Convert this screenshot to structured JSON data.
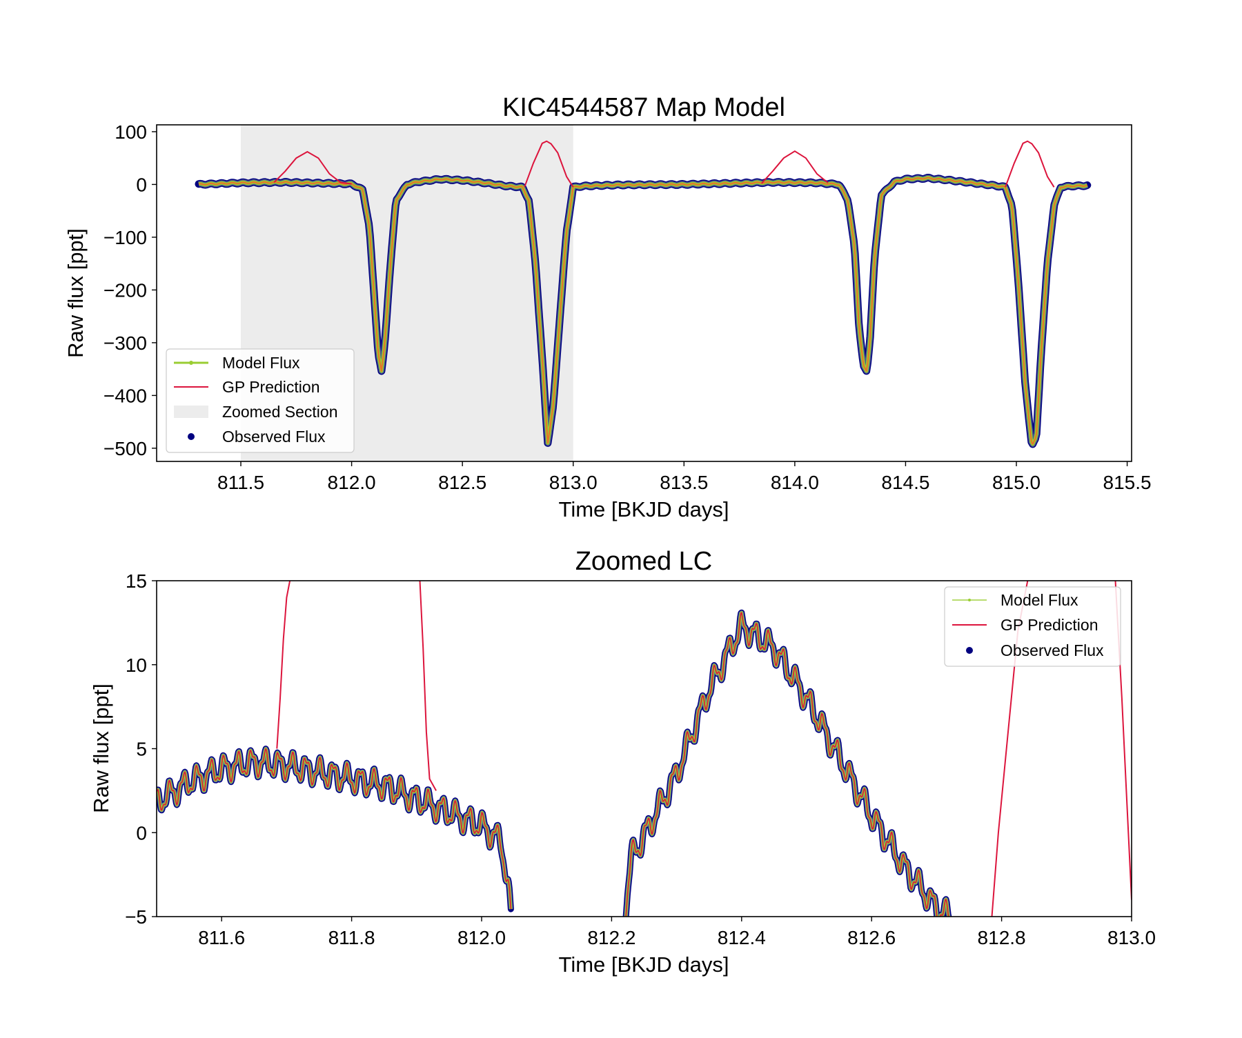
{
  "colors": {
    "model": "#9acd32",
    "gp": "#dc143c",
    "observed": "#000080",
    "zoom_span": "#ececec",
    "axes": "#000000"
  },
  "chart_data": [
    {
      "type": "line",
      "title": "KIC4544587 Map Model",
      "xlabel": "Time [BKJD days]",
      "ylabel": "Raw flux [ppt]",
      "xlim": [
        811.12,
        815.52
      ],
      "ylim": [
        -525,
        113
      ],
      "xticks": [
        "811.5",
        "812.0",
        "812.5",
        "813.0",
        "813.5",
        "814.0",
        "814.5",
        "815.0",
        "815.5"
      ],
      "xtick_values": [
        811.5,
        812.0,
        812.5,
        813.0,
        813.5,
        814.0,
        814.5,
        815.0,
        815.5
      ],
      "yticks": [
        "100",
        "0",
        "−100",
        "−200",
        "−300",
        "−400",
        "−500"
      ],
      "ytick_values": [
        100,
        0,
        -100,
        -200,
        -300,
        -400,
        -500
      ],
      "legend_position": "lower-left",
      "legend": [
        "Model Flux",
        "GP Prediction",
        "Zoomed Section",
        "Observed Flux"
      ],
      "zoomed_section": [
        811.5,
        813.0
      ],
      "flux_profile": {
        "x": [
          811.31,
          811.5,
          811.7,
          811.9,
          812.0,
          812.05,
          812.08,
          812.1,
          812.12,
          812.135,
          812.15,
          812.17,
          812.2,
          812.25,
          812.3,
          812.4,
          812.5,
          812.6,
          812.7,
          812.77,
          812.8,
          812.83,
          812.86,
          812.885,
          812.91,
          812.94,
          812.97,
          813.0,
          813.05,
          813.2,
          813.5,
          813.7,
          813.9,
          814.1,
          814.2,
          814.24,
          814.27,
          814.29,
          814.31,
          814.325,
          814.34,
          814.36,
          814.39,
          814.45,
          814.5,
          814.6,
          814.7,
          814.8,
          814.9,
          814.95,
          814.98,
          815.01,
          815.04,
          815.07,
          815.09,
          815.11,
          815.14,
          815.17,
          815.2,
          815.25,
          815.32
        ],
        "y": [
          0,
          3,
          4,
          2,
          1,
          -10,
          -80,
          -200,
          -320,
          -355,
          -300,
          -180,
          -30,
          0,
          5,
          10,
          8,
          3,
          -3,
          -5,
          -30,
          -150,
          -330,
          -490,
          -420,
          -250,
          -90,
          -5,
          -3,
          -1,
          0,
          2,
          4,
          3,
          0,
          -30,
          -120,
          -270,
          -345,
          -355,
          -290,
          -140,
          -20,
          5,
          10,
          12,
          8,
          3,
          -2,
          -5,
          -40,
          -190,
          -380,
          -495,
          -480,
          -330,
          -150,
          -40,
          -5,
          -3,
          -2
        ]
      },
      "gp_bumps": {
        "x": [
          811.65,
          811.7,
          811.75,
          811.8,
          811.85,
          811.9,
          811.95,
          812.0,
          812.78,
          812.82,
          812.86,
          812.88,
          812.9,
          812.93,
          812.97,
          813.0,
          813.85,
          813.9,
          813.95,
          814.0,
          814.05,
          814.1,
          814.15,
          814.95,
          814.99,
          815.03,
          815.05,
          815.07,
          815.1,
          815.14,
          815.17
        ],
        "y": [
          4,
          25,
          50,
          62,
          50,
          20,
          4,
          1,
          -5,
          40,
          78,
          82,
          77,
          60,
          15,
          -5,
          2,
          25,
          50,
          63,
          50,
          20,
          3,
          -5,
          40,
          78,
          82,
          77,
          60,
          15,
          -5
        ]
      }
    },
    {
      "type": "line",
      "title": "Zoomed LC",
      "xlabel": "Time [BKJD days]",
      "ylabel": "Raw flux [ppt]",
      "xlim": [
        811.5,
        813.0
      ],
      "ylim": [
        -5,
        15
      ],
      "xticks": [
        "811.6",
        "811.8",
        "812.0",
        "812.2",
        "812.4",
        "812.6",
        "812.8",
        "813.0"
      ],
      "xtick_values": [
        811.6,
        811.8,
        812.0,
        812.2,
        812.4,
        812.6,
        812.8,
        813.0
      ],
      "yticks": [
        "15",
        "10",
        "5",
        "0",
        "−5"
      ],
      "ytick_values": [
        15,
        10,
        5,
        0,
        -5
      ],
      "legend_position": "upper-right",
      "legend": [
        "Model Flux",
        "GP Prediction",
        "Observed Flux"
      ],
      "segment1": {
        "x": [
          811.5,
          811.55,
          811.6,
          811.65,
          811.7,
          811.75,
          811.8,
          811.85,
          811.9,
          811.95,
          812.0,
          812.03,
          812.04,
          812.045
        ],
        "y": [
          1.8,
          3.0,
          3.8,
          4.2,
          4.0,
          3.6,
          3.2,
          2.8,
          2.0,
          1.2,
          0.4,
          -0.5,
          -3.0,
          -5.0
        ]
      },
      "segment2": {
        "x": [
          812.22,
          812.23,
          812.25,
          812.3,
          812.35,
          812.4,
          812.45,
          812.5,
          812.55,
          812.6,
          812.65,
          812.7,
          812.72
        ],
        "y": [
          -5.0,
          -1.5,
          -0.2,
          3.5,
          8.5,
          12.3,
          11.0,
          8.0,
          4.5,
          1.0,
          -2.0,
          -4.5,
          -5.0
        ]
      },
      "gp_rise": {
        "x": [
          811.685,
          811.69,
          811.695,
          811.7,
          811.705
        ],
        "y": [
          5.0,
          8.0,
          11.5,
          14.0,
          15.0
        ]
      },
      "gp_fall": {
        "x": [
          811.905,
          811.91,
          811.915,
          811.92,
          811.93
        ],
        "y": [
          15.0,
          11.0,
          6.0,
          3.2,
          2.5
        ]
      },
      "gp_outer": {
        "x": [
          812.785,
          812.795,
          812.81,
          812.825,
          812.84
        ],
        "y": [
          -5.0,
          0.0,
          6.0,
          12.0,
          15.0
        ]
      },
      "gp_outer2": {
        "x": [
          812.975,
          812.985,
          812.995,
          813.0
        ],
        "y": [
          15.0,
          8.0,
          0.0,
          -4.0
        ]
      }
    }
  ]
}
